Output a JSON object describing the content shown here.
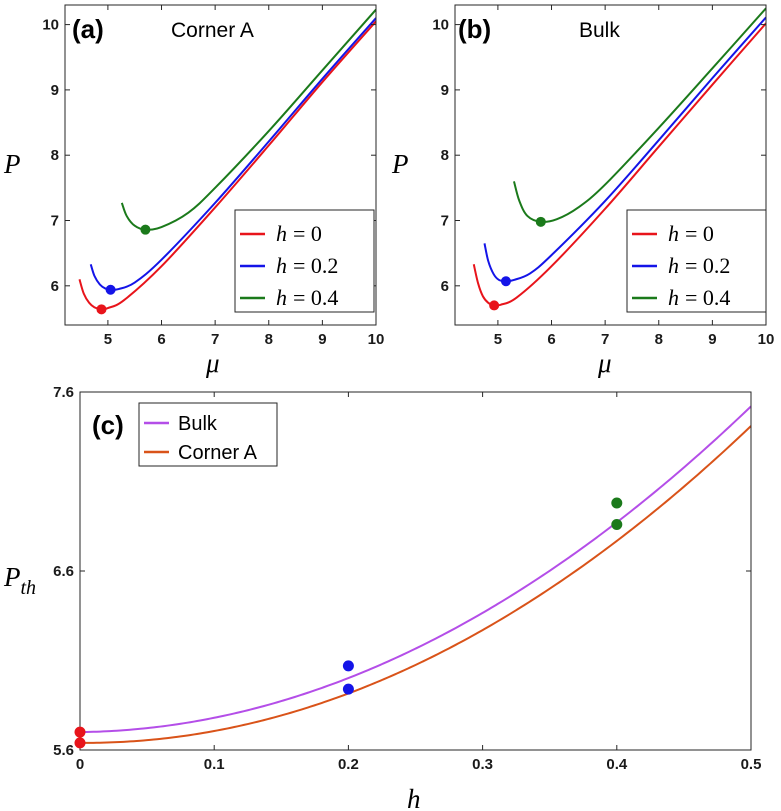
{
  "chart_data": [
    {
      "type": "line",
      "tag": "(a)",
      "title": "Corner A",
      "xlabel": "μ",
      "ylabel": "P",
      "xlim": [
        4.2,
        10
      ],
      "ylim": [
        5.4,
        10.3
      ],
      "xticks": [
        5,
        6,
        7,
        8,
        9,
        10
      ],
      "yticks": [
        6,
        7,
        8,
        9,
        10
      ],
      "legend": "bottom-right",
      "series": [
        {
          "name": "h = 0",
          "legend_var": "h",
          "legend_val": "= 0",
          "color": "#e8141b",
          "x": [
            4.47,
            4.55,
            4.65,
            4.75,
            4.88,
            5.0,
            5.3,
            6.0,
            7.0,
            8.0,
            9.0,
            10.0
          ],
          "y": [
            6.1,
            5.88,
            5.74,
            5.67,
            5.64,
            5.66,
            5.78,
            6.3,
            7.2,
            8.15,
            9.12,
            10.05
          ],
          "min_point": [
            4.88,
            5.64
          ]
        },
        {
          "name": "h = 0.2",
          "legend_var": "h",
          "legend_val": "= 0.2",
          "color": "#1414e8",
          "x": [
            4.68,
            4.75,
            4.85,
            4.95,
            5.05,
            5.2,
            5.5,
            6.0,
            7.0,
            8.0,
            9.0,
            10.0
          ],
          "y": [
            6.33,
            6.15,
            6.02,
            5.96,
            5.94,
            5.95,
            6.05,
            6.4,
            7.27,
            8.21,
            9.17,
            10.1
          ],
          "min_point": [
            5.05,
            5.94
          ]
        },
        {
          "name": "h = 0.4",
          "legend_var": "h",
          "legend_val": "= 0.4",
          "color": "#1b7a1b",
          "x": [
            5.26,
            5.35,
            5.5,
            5.7,
            6.0,
            6.5,
            7.0,
            8.0,
            9.0,
            10.0
          ],
          "y": [
            7.27,
            7.07,
            6.92,
            6.86,
            6.9,
            7.12,
            7.5,
            8.37,
            9.3,
            10.23
          ],
          "min_point": [
            5.7,
            6.86
          ]
        }
      ]
    },
    {
      "type": "line",
      "tag": "(b)",
      "title": "Bulk",
      "xlabel": "μ",
      "ylabel": "P",
      "xlim": [
        4.2,
        10
      ],
      "ylim": [
        5.4,
        10.3
      ],
      "xticks": [
        5,
        6,
        7,
        8,
        9,
        10
      ],
      "yticks": [
        6,
        7,
        8,
        9,
        10
      ],
      "legend": "bottom-right",
      "series": [
        {
          "name": "h = 0",
          "legend_var": "h",
          "legend_val": "= 0",
          "color": "#e8141b",
          "x": [
            4.55,
            4.63,
            4.72,
            4.82,
            4.93,
            5.05,
            5.35,
            6.0,
            7.0,
            8.0,
            9.0,
            10.0
          ],
          "y": [
            6.33,
            6.04,
            5.84,
            5.74,
            5.7,
            5.71,
            5.82,
            6.3,
            7.18,
            8.13,
            9.08,
            10.02
          ],
          "min_point": [
            4.93,
            5.7
          ]
        },
        {
          "name": "h = 0.2",
          "legend_var": "h",
          "legend_val": "= 0.2",
          "color": "#1414e8",
          "x": [
            4.75,
            4.82,
            4.92,
            5.02,
            5.15,
            5.3,
            5.6,
            6.0,
            7.0,
            8.0,
            9.0,
            10.0
          ],
          "y": [
            6.65,
            6.38,
            6.18,
            6.09,
            6.07,
            6.09,
            6.19,
            6.47,
            7.3,
            8.23,
            9.18,
            10.11
          ],
          "min_point": [
            5.15,
            6.07
          ]
        },
        {
          "name": "h = 0.4",
          "legend_var": "h",
          "legend_val": "= 0.4",
          "color": "#1b7a1b",
          "x": [
            5.3,
            5.4,
            5.55,
            5.8,
            6.1,
            6.5,
            7.0,
            8.0,
            9.0,
            10.0
          ],
          "y": [
            7.6,
            7.3,
            7.07,
            6.98,
            7.02,
            7.2,
            7.55,
            8.42,
            9.33,
            10.25
          ],
          "min_point": [
            5.8,
            6.98
          ]
        }
      ]
    },
    {
      "type": "line",
      "tag": "(c)",
      "xlabel": "h",
      "ylabel": "P",
      "ylabel_sub": "th",
      "xlim": [
        0,
        0.5
      ],
      "ylim": [
        5.6,
        7.6
      ],
      "xticks": [
        0,
        0.1,
        0.2,
        0.3,
        0.4,
        0.5
      ],
      "xtick_labels": [
        "0",
        "0.1",
        "0.2",
        "0.3",
        "0.4",
        "0.5"
      ],
      "yticks": [
        5.6,
        6.6,
        7.6
      ],
      "ytick_labels": [
        "5.6",
        "6.6",
        "7.6"
      ],
      "legend": "top-left",
      "series": [
        {
          "name": "Bulk",
          "color": "#b44ee8",
          "p0": 5.7,
          "a": 0.09,
          "b": 7.1,
          "points": [
            {
              "x": 0,
              "y": 5.7,
              "color": "#e8141b"
            },
            {
              "x": 0.2,
              "y": 6.07,
              "color": "#1414e8"
            },
            {
              "x": 0.4,
              "y": 6.98,
              "color": "#1b7a1b"
            }
          ]
        },
        {
          "name": "Corner A",
          "color": "#d95319",
          "p0": 5.64,
          "a": -0.06,
          "b": 7.2,
          "points": [
            {
              "x": 0,
              "y": 5.64,
              "color": "#e8141b"
            },
            {
              "x": 0.2,
              "y": 5.94,
              "color": "#1414e8"
            },
            {
              "x": 0.4,
              "y": 6.86,
              "color": "#1b7a1b"
            }
          ]
        }
      ]
    }
  ]
}
